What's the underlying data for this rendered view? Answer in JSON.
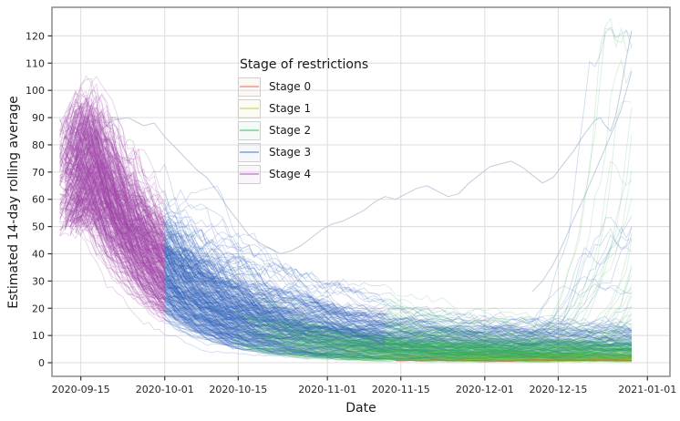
{
  "chart_data": {
    "type": "line",
    "title": "",
    "xlabel": "Date",
    "ylabel": "Estimated 14-day rolling average",
    "x_ticks": [
      {
        "label": "2020-09-15",
        "day": 0
      },
      {
        "label": "2020-10-01",
        "day": 16
      },
      {
        "label": "2020-10-15",
        "day": 30
      },
      {
        "label": "2020-11-01",
        "day": 47
      },
      {
        "label": "2020-11-15",
        "day": 61
      },
      {
        "label": "2020-12-01",
        "day": 77
      },
      {
        "label": "2020-12-15",
        "day": 91
      },
      {
        "label": "2021-01-01",
        "day": 108
      }
    ],
    "y_ticks": [
      0,
      10,
      20,
      30,
      40,
      50,
      60,
      70,
      80,
      90,
      100,
      110,
      120
    ],
    "xlim_days": [
      -5.5,
      112.3
    ],
    "ylim": [
      -5,
      130.5
    ],
    "grid": true,
    "colors": {
      "grid": "#dcdcdc",
      "panel_border": "#7a7a7a",
      "tick": "#333333",
      "text": "#262626",
      "background": "#ffffff"
    },
    "legend": {
      "title": "Stage of restrictions",
      "position": "upper-left-center",
      "entries": [
        {
          "label": "Stage 0",
          "color": "#d95f4a"
        },
        {
          "label": "Stage 1",
          "color": "#bcc437"
        },
        {
          "label": "Stage 2",
          "color": "#2fae58"
        },
        {
          "label": "Stage 3",
          "color": "#3263be"
        },
        {
          "label": "Stage 4",
          "color": "#a044a8"
        }
      ]
    },
    "ensemble": {
      "seed": 1337,
      "n_trajectories": 360,
      "start_day_range": [
        -4,
        -1
      ],
      "start_value_range": [
        50,
        85
      ],
      "stage4_to_3_day": 16,
      "end_day": 105,
      "line_width": 0.9,
      "line_opacity": 0.18,
      "spike_fraction": 0.14,
      "green_fraction": 0.8
    },
    "stage0_line": {
      "start_day": 60,
      "end_day": 105,
      "value": 0.9,
      "opacity": 0.85,
      "width": 1.1
    },
    "outlier_runs": [
      {
        "color": "#b7c3d6",
        "opacity": 0.85,
        "width": 1.0,
        "points": [
          [
            -3,
            55
          ],
          [
            -1,
            66
          ],
          [
            1,
            76
          ],
          [
            3,
            84
          ],
          [
            6,
            89
          ],
          [
            9,
            90
          ],
          [
            12,
            87
          ],
          [
            14,
            88
          ],
          [
            16,
            83
          ],
          [
            18,
            79
          ],
          [
            20,
            75
          ],
          [
            22,
            71
          ],
          [
            24,
            68
          ],
          [
            26,
            63
          ],
          [
            28,
            57
          ],
          [
            30,
            52
          ],
          [
            32,
            47
          ],
          [
            34,
            44
          ],
          [
            36,
            42
          ],
          [
            38,
            40
          ],
          [
            40,
            41
          ],
          [
            42,
            43
          ],
          [
            44,
            46
          ],
          [
            46,
            49
          ],
          [
            48,
            51
          ],
          [
            50,
            52
          ],
          [
            52,
            54
          ],
          [
            54,
            56
          ],
          [
            56,
            59
          ],
          [
            58,
            61
          ],
          [
            60,
            60
          ],
          [
            62,
            62
          ],
          [
            64,
            64
          ],
          [
            66,
            65
          ],
          [
            68,
            63
          ],
          [
            70,
            61
          ],
          [
            72,
            62
          ],
          [
            74,
            66
          ],
          [
            76,
            69
          ],
          [
            78,
            72
          ],
          [
            80,
            73
          ],
          [
            82,
            74
          ],
          [
            84,
            72
          ],
          [
            86,
            69
          ],
          [
            88,
            66
          ],
          [
            90,
            68
          ],
          [
            92,
            73
          ],
          [
            94,
            78
          ],
          [
            96,
            84
          ],
          [
            98,
            89
          ],
          [
            99,
            90
          ],
          [
            100,
            87
          ],
          [
            101,
            85
          ],
          [
            102,
            91
          ],
          [
            103,
            101
          ],
          [
            104,
            112
          ],
          [
            105,
            122
          ]
        ]
      },
      {
        "color": "#a9bad6",
        "opacity": 0.7,
        "width": 1.0,
        "points": [
          [
            86,
            26
          ],
          [
            88,
            30
          ],
          [
            90,
            36
          ],
          [
            92,
            44
          ],
          [
            94,
            53
          ],
          [
            96,
            61
          ],
          [
            98,
            70
          ],
          [
            100,
            79
          ],
          [
            102,
            88
          ],
          [
            103,
            93
          ],
          [
            104,
            100
          ],
          [
            105,
            107
          ]
        ]
      }
    ]
  }
}
